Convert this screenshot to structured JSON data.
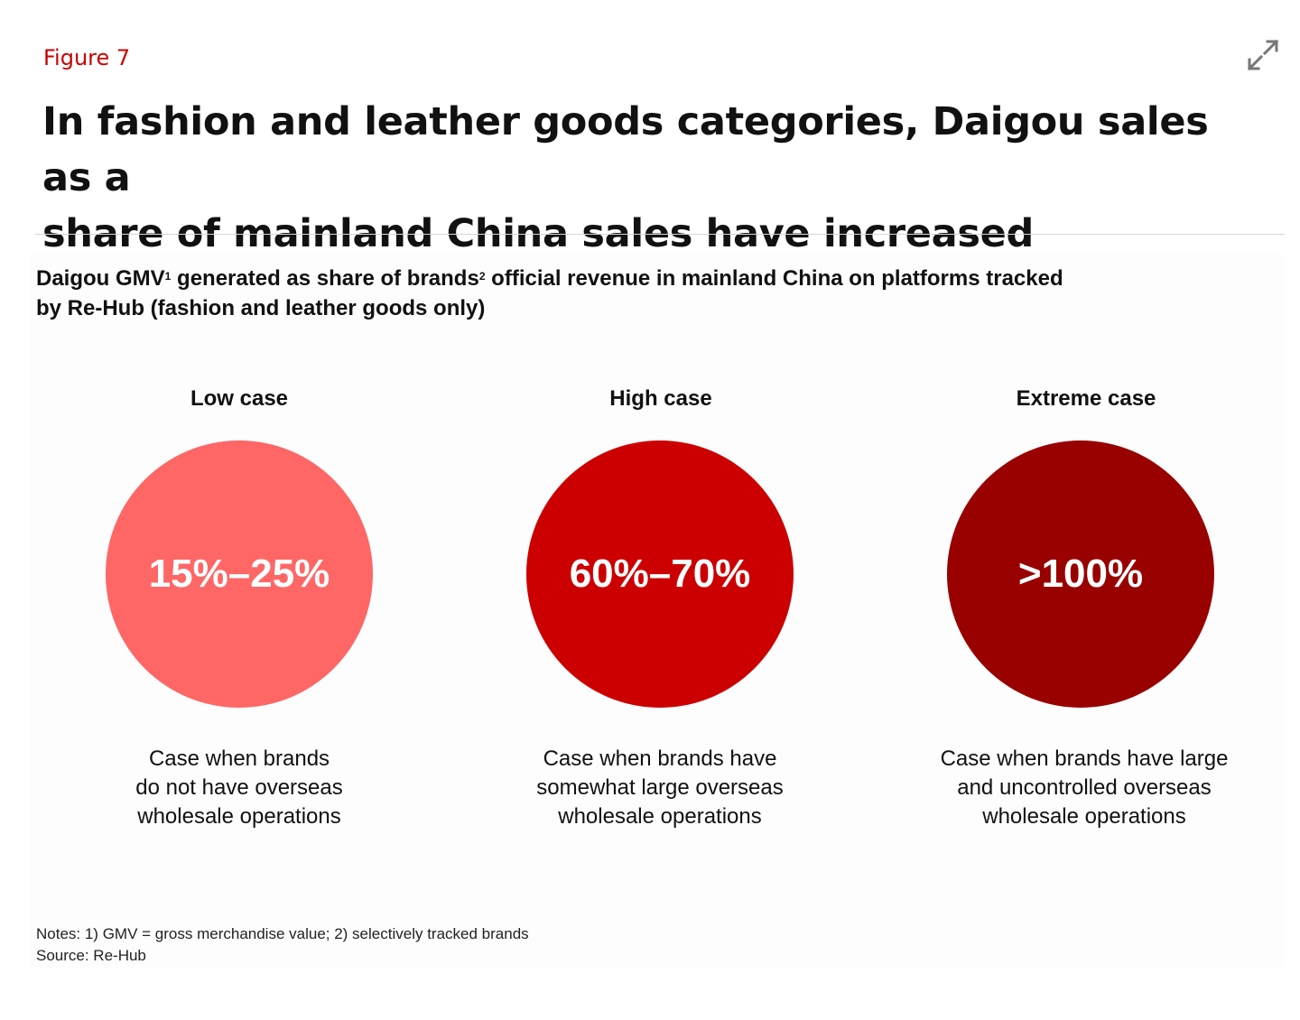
{
  "figure_label": "Figure 7",
  "headline_line1": "In fashion and leather goods categories, Daigou sales as a",
  "headline_line2": "share of mainland China sales have increased",
  "icons": {
    "expand": "expand-icon"
  },
  "subtitle": {
    "part1": "Daigou GMV",
    "sup1": "1",
    "part2": " generated as share of brands",
    "sup2": "2",
    "part3": " official revenue in mainland China on platforms tracked",
    "line2": "by Re-Hub (fashion and leather goods only)"
  },
  "cases": [
    {
      "title": "Low case",
      "value": "15%–25%",
      "color": "#ff6666",
      "desc_line1": "Case when brands",
      "desc_line2": "do not have overseas",
      "desc_line3": "wholesale operations"
    },
    {
      "title": "High case",
      "value": "60%–70%",
      "color": "#cc0000",
      "desc_line1": "Case when brands have",
      "desc_line2": "somewhat large overseas",
      "desc_line3": "wholesale operations"
    },
    {
      "title": "Extreme case",
      "value": ">100%",
      "color": "#990000",
      "desc_line1": "Case when brands have large",
      "desc_line2": "and uncontrolled overseas",
      "desc_line3": "wholesale operations"
    }
  ],
  "notes": "Notes: 1) GMV = gross merchandise value; 2) selectively tracked brands",
  "source": "Source: Re-Hub",
  "colors": {
    "accent": "#cc0000",
    "divider": "#d6d6d6"
  }
}
